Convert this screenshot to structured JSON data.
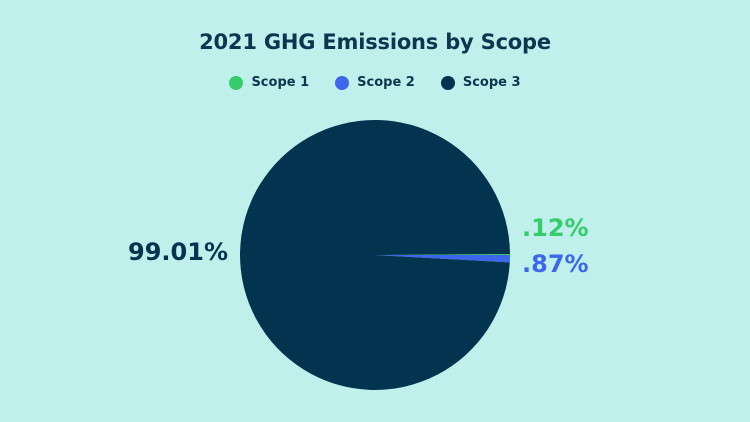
{
  "chart_data": {
    "type": "pie",
    "title": "2021 GHG Emissions by Scope",
    "legend_position": "top",
    "slices": [
      {
        "name": "Scope 1",
        "value": 0.12,
        "label": ".12%",
        "color": "#35cc6b"
      },
      {
        "name": "Scope 2",
        "value": 0.87,
        "label": ".87%",
        "color": "#3d67ea"
      },
      {
        "name": "Scope 3",
        "value": 99.01,
        "label": "99.01%",
        "color": "#02344f"
      }
    ]
  },
  "colors": {
    "background": "#bff0ec",
    "text": "#0e3550"
  }
}
